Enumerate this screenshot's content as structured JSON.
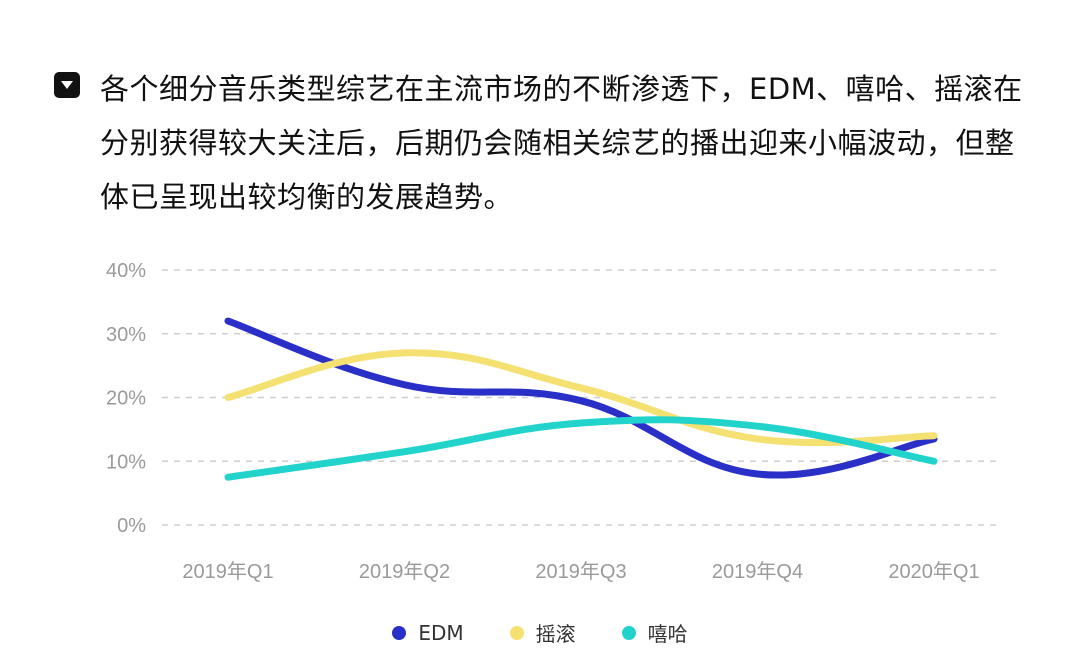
{
  "heading": {
    "icon": "caret-down-icon",
    "text": "各个细分音乐类型综艺在主流市场的不断渗透下，EDM、嘻哈、摇滚在分别获得较大关注后，后期仍会随相关综艺的播出迎来小幅波动，但整体已呈现出较均衡的发展趋势。"
  },
  "chart_data": {
    "type": "line",
    "title": "",
    "xlabel": "",
    "ylabel": "",
    "categories": [
      "2019年Q1",
      "2019年Q2",
      "2019年Q3",
      "2019年Q4",
      "2020年Q1"
    ],
    "ylim": [
      0,
      40
    ],
    "yticks": [
      0,
      10,
      20,
      30,
      40
    ],
    "ytick_labels": [
      "0%",
      "10%",
      "20%",
      "30%",
      "40%"
    ],
    "grid": true,
    "legend_position": "bottom-center",
    "series": [
      {
        "name": "EDM",
        "color": "#2a2fc8",
        "values": [
          32,
          22,
          19.5,
          8,
          13.5
        ]
      },
      {
        "name": "摇滚",
        "color": "#f5e072",
        "values": [
          20,
          27,
          21.5,
          13.5,
          14
        ]
      },
      {
        "name": "嘻哈",
        "color": "#22d3cc",
        "values": [
          7.5,
          11.5,
          16,
          15.5,
          10
        ]
      }
    ]
  }
}
